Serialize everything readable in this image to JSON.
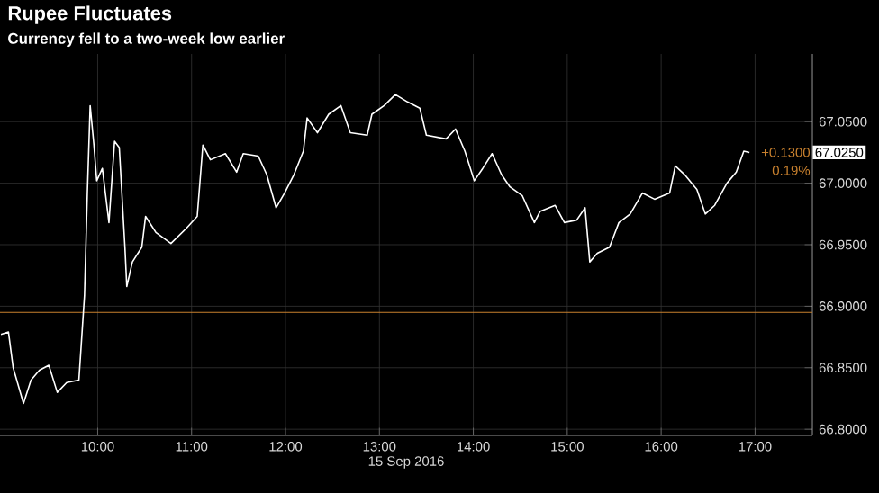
{
  "chart_data": {
    "type": "line",
    "title": "Rupee Fluctuates",
    "subtitle": "Currency fell to a two-week low earlier",
    "xlabel": "15 Sep 2016",
    "x": [
      8.97,
      9.05,
      9.1,
      9.21,
      9.29,
      9.38,
      9.48,
      9.57,
      9.67,
      9.8,
      9.86,
      9.89,
      9.92,
      9.96,
      9.99,
      10.05,
      10.12,
      10.18,
      10.23,
      10.29,
      10.31,
      10.37,
      10.47,
      10.51,
      10.62,
      10.78,
      10.94,
      11.06,
      11.12,
      11.2,
      11.36,
      11.48,
      11.55,
      11.71,
      11.8,
      11.9,
      11.99,
      12.09,
      12.19,
      12.23,
      12.34,
      12.46,
      12.59,
      12.69,
      12.87,
      12.92,
      13.05,
      13.17,
      13.3,
      13.43,
      13.5,
      13.71,
      13.81,
      13.91,
      14.01,
      14.1,
      14.2,
      14.3,
      14.39,
      14.52,
      14.65,
      14.71,
      14.87,
      14.97,
      15.1,
      15.19,
      15.24,
      15.32,
      15.45,
      15.55,
      15.67,
      15.8,
      15.93,
      16.09,
      16.15,
      16.25,
      16.38,
      16.47,
      16.57,
      16.7,
      16.8,
      16.88,
      16.94
    ],
    "series": [
      {
        "color": "#ffffff",
        "values": [
          66.877,
          66.879,
          66.85,
          66.821,
          66.84,
          66.848,
          66.852,
          66.83,
          66.838,
          66.84,
          66.909,
          66.992,
          67.063,
          67.031,
          67.002,
          67.012,
          66.968,
          67.034,
          67.029,
          66.948,
          66.916,
          66.936,
          66.948,
          66.973,
          66.96,
          66.951,
          66.963,
          66.973,
          67.031,
          67.019,
          67.024,
          67.009,
          67.024,
          67.022,
          67.007,
          66.98,
          66.992,
          67.007,
          67.026,
          67.053,
          67.041,
          67.056,
          67.063,
          67.041,
          67.039,
          67.056,
          67.063,
          67.072,
          67.066,
          67.061,
          67.039,
          67.036,
          67.044,
          67.026,
          67.002,
          67.012,
          67.024,
          67.007,
          66.997,
          66.99,
          66.968,
          66.977,
          66.982,
          66.968,
          66.97,
          66.98,
          66.936,
          66.943,
          66.948,
          66.968,
          66.975,
          66.992,
          66.987,
          66.992,
          67.014,
          67.007,
          66.995,
          66.975,
          66.982,
          67.0,
          67.009,
          67.026,
          67.025
        ]
      }
    ],
    "xlim": [
      8.96,
      17.61
    ],
    "ylim": [
      66.795,
      67.105
    ],
    "xticks": [
      {
        "value": 10,
        "label": "10:00"
      },
      {
        "value": 11,
        "label": "11:00"
      },
      {
        "value": 12,
        "label": "12:00"
      },
      {
        "value": 13,
        "label": "13:00"
      },
      {
        "value": 14,
        "label": "14:00"
      },
      {
        "value": 15,
        "label": "15:00"
      },
      {
        "value": 16,
        "label": "16:00"
      },
      {
        "value": 17,
        "label": "17:00"
      }
    ],
    "yticks": [
      {
        "value": 66.8,
        "label": "66.8000"
      },
      {
        "value": 66.85,
        "label": "66.8500"
      },
      {
        "value": 66.9,
        "label": "66.9000"
      },
      {
        "value": 66.95,
        "label": "66.9500"
      },
      {
        "value": 67.0,
        "label": "67.0000"
      },
      {
        "value": 67.05,
        "label": "67.0500"
      }
    ],
    "ref_lines": [
      {
        "axis": "y",
        "value": 66.895,
        "color": "#c8802e"
      }
    ],
    "annotations": [
      "67.0250",
      "+0.1300",
      "0.19%"
    ],
    "grid": true
  }
}
